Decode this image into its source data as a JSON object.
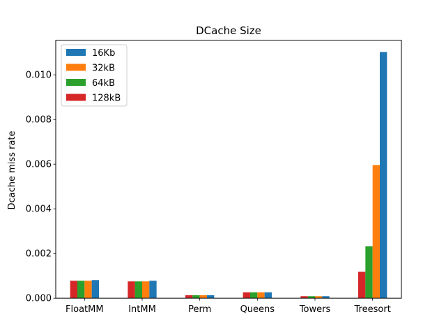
{
  "chart_data": {
    "type": "bar",
    "title": "DCache Size",
    "xlabel": "",
    "ylabel": "Dcache miss rate",
    "categories": [
      "FloatMM",
      "IntMM",
      "Perm",
      "Queens",
      "Towers",
      "Treesort"
    ],
    "series": [
      {
        "name": "128kB",
        "color": "#d62728",
        "values": [
          0.00078,
          0.00075,
          0.00013,
          0.00026,
          9e-05,
          0.00118
        ]
      },
      {
        "name": "64kB",
        "color": "#2ca02c",
        "values": [
          0.00078,
          0.00075,
          0.00013,
          0.00026,
          9e-05,
          0.00232
        ]
      },
      {
        "name": "32kB",
        "color": "#ff7f0e",
        "values": [
          0.00078,
          0.00075,
          0.00013,
          0.00026,
          9e-05,
          0.00596
        ]
      },
      {
        "name": "16Kb",
        "color": "#1f77b4",
        "values": [
          0.00081,
          0.00078,
          0.00013,
          0.00026,
          9e-05,
          0.01102
        ]
      }
    ],
    "legend_order": [
      "16Kb",
      "32kB",
      "64kB",
      "128kB"
    ],
    "legend_position": "top-left",
    "ylim": [
      0,
      0.01155
    ],
    "yticks": [
      0.0,
      0.002,
      0.004,
      0.006,
      0.008,
      0.01
    ],
    "ytick_labels": [
      "0.000",
      "0.002",
      "0.004",
      "0.006",
      "0.008",
      "0.010"
    ],
    "grid": false
  }
}
